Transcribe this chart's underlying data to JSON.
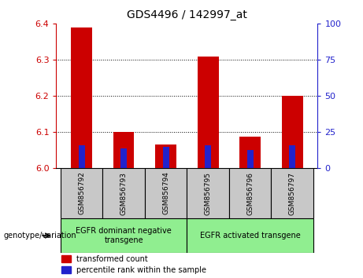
{
  "title": "GDS4496 / 142997_at",
  "categories": [
    "GSM856792",
    "GSM856793",
    "GSM856794",
    "GSM856795",
    "GSM856796",
    "GSM856797"
  ],
  "red_values": [
    6.39,
    6.1,
    6.065,
    6.31,
    6.088,
    6.2
  ],
  "blue_values": [
    6.063,
    6.055,
    6.058,
    6.063,
    6.05,
    6.063
  ],
  "ylim": [
    6.0,
    6.4
  ],
  "yticks_left": [
    6.0,
    6.1,
    6.2,
    6.3,
    6.4
  ],
  "yticks_right": [
    0,
    25,
    50,
    75,
    100
  ],
  "group1_label": "EGFR dominant negative\ntransgene",
  "group2_label": "EGFR activated transgene",
  "legend_red": "transformed count",
  "legend_blue": "percentile rank within the sample",
  "genotype_label": "genotype/variation",
  "bar_width": 0.5,
  "blue_bar_width": 0.15,
  "red_color": "#cc0000",
  "blue_color": "#2222cc",
  "group_bg_color": "#c8c8c8",
  "group_green_color": "#90ee90",
  "left_tick_color": "#cc0000",
  "right_tick_color": "#2222cc"
}
